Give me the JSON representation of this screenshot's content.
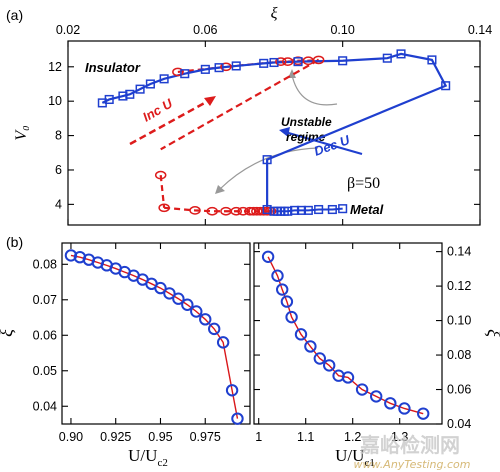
{
  "panel_labels": {
    "a": "(a)",
    "b": "(b)"
  },
  "watermark": {
    "line1": "嘉峪检测网",
    "line2": "www.AnyTesting.com"
  },
  "colors": {
    "red": "#dd1c1c",
    "blue": "#1f3fcf",
    "fit": "#d9171a"
  },
  "chart_data": [
    {
      "id": "panel-a",
      "type": "line",
      "xlabel": "ξ",
      "ylabel": "V₀",
      "xaxis_position": "top",
      "xlim": [
        0.02,
        0.14
      ],
      "ylim": [
        2.8,
        13.5
      ],
      "xticks": [
        "0.02",
        "0.06",
        "0.10",
        "0.14"
      ],
      "yticks": [
        "4",
        "6",
        "8",
        "10",
        "12"
      ],
      "annotations": {
        "insulator": "Insulator",
        "metal": "Metal",
        "beta": "β=50",
        "inc_u": "Inc U",
        "dec_u": "Dec U",
        "unstable_line1": "Unstable",
        "unstable_line2": "regime"
      },
      "series": [
        {
          "name": "Inc U",
          "color": "#dd1c1c",
          "marker": "circle",
          "upper_branch": [
            [
              0.052,
              11.7
            ],
            [
              0.066,
              12.0
            ],
            [
              0.082,
              12.3
            ],
            [
              0.084,
              12.3
            ],
            [
              0.087,
              12.35
            ],
            [
              0.09,
              12.35
            ],
            [
              0.093,
              12.4
            ]
          ],
          "jump_dashed": [
            [
              0.093,
              12.4
            ],
            [
              0.047,
              7.2
            ]
          ],
          "lower_branch": [
            [
              0.047,
              5.7
            ],
            [
              0.048,
              3.8
            ],
            [
              0.057,
              3.65
            ],
            [
              0.062,
              3.6
            ],
            [
              0.066,
              3.6
            ],
            [
              0.069,
              3.6
            ],
            [
              0.071,
              3.6
            ],
            [
              0.073,
              3.6
            ],
            [
              0.074,
              3.6
            ],
            [
              0.075,
              3.6
            ],
            [
              0.076,
              3.6
            ],
            [
              0.077,
              3.6
            ],
            [
              0.078,
              3.6
            ],
            [
              0.079,
              3.6
            ]
          ]
        },
        {
          "name": "Dec U",
          "color": "#1f3fcf",
          "marker": "square",
          "points": [
            [
              0.08,
              3.6
            ],
            [
              0.081,
              3.6
            ],
            [
              0.082,
              3.6
            ],
            [
              0.083,
              3.6
            ],
            [
              0.084,
              3.6
            ],
            [
              0.086,
              3.65
            ],
            [
              0.088,
              3.65
            ],
            [
              0.09,
              3.65
            ],
            [
              0.093,
              3.7
            ],
            [
              0.097,
              3.7
            ],
            [
              0.1,
              3.75
            ],
            [
              0.078,
              3.7
            ],
            [
              0.078,
              6.6
            ],
            [
              0.13,
              10.9
            ],
            [
              0.126,
              12.4
            ],
            [
              0.117,
              12.75
            ],
            [
              0.113,
              12.5
            ],
            [
              0.1,
              12.35
            ],
            [
              0.087,
              12.3
            ],
            [
              0.08,
              12.25
            ],
            [
              0.077,
              12.2
            ],
            [
              0.069,
              12.05
            ],
            [
              0.064,
              11.95
            ],
            [
              0.06,
              11.85
            ],
            [
              0.054,
              11.6
            ],
            [
              0.048,
              11.3
            ],
            [
              0.044,
              11.0
            ],
            [
              0.041,
              10.7
            ],
            [
              0.038,
              10.4
            ],
            [
              0.036,
              10.3
            ],
            [
              0.032,
              10.1
            ],
            [
              0.03,
              9.9
            ]
          ]
        }
      ]
    },
    {
      "id": "panel-b-left",
      "type": "scatter",
      "xlabel": "U/U",
      "xlabel_sub": "c2",
      "ylabel": "ξ",
      "xlim": [
        0.895,
        1.0
      ],
      "ylim": [
        0.035,
        0.086
      ],
      "xticks": [
        "0.90",
        "0.925",
        "0.95",
        "0.975"
      ],
      "yticks": [
        "0.04",
        "0.05",
        "0.06",
        "0.07",
        "0.08"
      ],
      "x": [
        0.9,
        0.905,
        0.91,
        0.915,
        0.92,
        0.925,
        0.93,
        0.935,
        0.94,
        0.945,
        0.95,
        0.955,
        0.96,
        0.965,
        0.97,
        0.975,
        0.98,
        0.985,
        0.99,
        0.993
      ],
      "y": [
        0.0825,
        0.082,
        0.0813,
        0.0805,
        0.0797,
        0.0788,
        0.0778,
        0.0768,
        0.0757,
        0.0745,
        0.0733,
        0.0718,
        0.0703,
        0.0686,
        0.0667,
        0.0645,
        0.0618,
        0.058,
        0.0445,
        0.0365
      ],
      "fit_color": "#d9171a",
      "marker_color": "#1f3fcf"
    },
    {
      "id": "panel-b-right",
      "type": "scatter",
      "xlabel": "U/U",
      "xlabel_sub": "c1",
      "ylabel": "ξ",
      "yaxis_position": "right",
      "xlim": [
        0.99,
        1.39
      ],
      "ylim": [
        0.04,
        0.145
      ],
      "xticks": [
        "1",
        "1.1",
        "1.2",
        "1.3"
      ],
      "yticks": [
        "0.04",
        "0.06",
        "0.08",
        "0.10",
        "0.12",
        "0.14"
      ],
      "x": [
        1.02,
        1.04,
        1.05,
        1.06,
        1.07,
        1.09,
        1.11,
        1.13,
        1.15,
        1.17,
        1.19,
        1.22,
        1.25,
        1.28,
        1.31,
        1.35
      ],
      "y": [
        0.137,
        0.126,
        0.118,
        0.111,
        0.102,
        0.092,
        0.085,
        0.078,
        0.074,
        0.068,
        0.067,
        0.06,
        0.056,
        0.052,
        0.049,
        0.046
      ],
      "fit_color": "#d9171a",
      "marker_color": "#1f3fcf"
    }
  ]
}
